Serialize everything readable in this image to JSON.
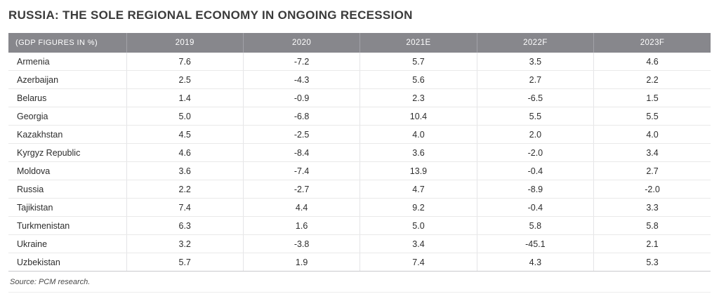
{
  "page": {
    "title": "RUSSIA: THE SOLE REGIONAL ECONOMY IN ONGOING RECESSION",
    "source": "Source: PCM research."
  },
  "colors": {
    "header_bg": "#87878c",
    "header_text": "#ffffff",
    "header_divider": "#a2a2a8",
    "title_text": "#3b3b3b",
    "body_text": "#2d2d2d",
    "row_divider": "#e9e9e9",
    "column_divider": "#e4e4e7",
    "table_bottom_border": "#c9c9cc",
    "footer_rule": "#ececec"
  },
  "chart_data": {
    "type": "table",
    "title": "RUSSIA: THE SOLE REGIONAL ECONOMY IN ONGOING RECESSION",
    "columns": [
      "(GDP FIGURES IN %)",
      "2019",
      "2020",
      "2021E",
      "2022F",
      "2023F"
    ],
    "rows": [
      {
        "country": "Armenia",
        "values": [
          "7.6",
          "-7.2",
          "5.7",
          "3.5",
          "4.6"
        ]
      },
      {
        "country": "Azerbaijan",
        "values": [
          "2.5",
          "-4.3",
          "5.6",
          "2.7",
          "2.2"
        ]
      },
      {
        "country": "Belarus",
        "values": [
          "1.4",
          "-0.9",
          "2.3",
          "-6.5",
          "1.5"
        ]
      },
      {
        "country": "Georgia",
        "values": [
          "5.0",
          "-6.8",
          "10.4",
          "5.5",
          "5.5"
        ]
      },
      {
        "country": "Kazakhstan",
        "values": [
          "4.5",
          "-2.5",
          "4.0",
          "2.0",
          "4.0"
        ]
      },
      {
        "country": "Kyrgyz Republic",
        "values": [
          "4.6",
          "-8.4",
          "3.6",
          "-2.0",
          "3.4"
        ]
      },
      {
        "country": "Moldova",
        "values": [
          "3.6",
          "-7.4",
          "13.9",
          "-0.4",
          "2.7"
        ]
      },
      {
        "country": "Russia",
        "values": [
          "2.2",
          "-2.7",
          "4.7",
          "-8.9",
          "-2.0"
        ]
      },
      {
        "country": "Tajikistan",
        "values": [
          "7.4",
          "4.4",
          "9.2",
          "-0.4",
          "3.3"
        ]
      },
      {
        "country": "Turkmenistan",
        "values": [
          "6.3",
          "1.6",
          "5.0",
          "5.8",
          "5.8"
        ]
      },
      {
        "country": "Ukraine",
        "values": [
          "3.2",
          "-3.8",
          "3.4",
          "-45.1",
          "2.1"
        ]
      },
      {
        "country": "Uzbekistan",
        "values": [
          "5.7",
          "1.9",
          "7.4",
          "4.3",
          "5.3"
        ]
      }
    ],
    "source": "Source: PCM research.",
    "layout": {
      "header_align": "center",
      "first_column_align": "left",
      "grid": "light-horizontal-and-vertical"
    }
  }
}
